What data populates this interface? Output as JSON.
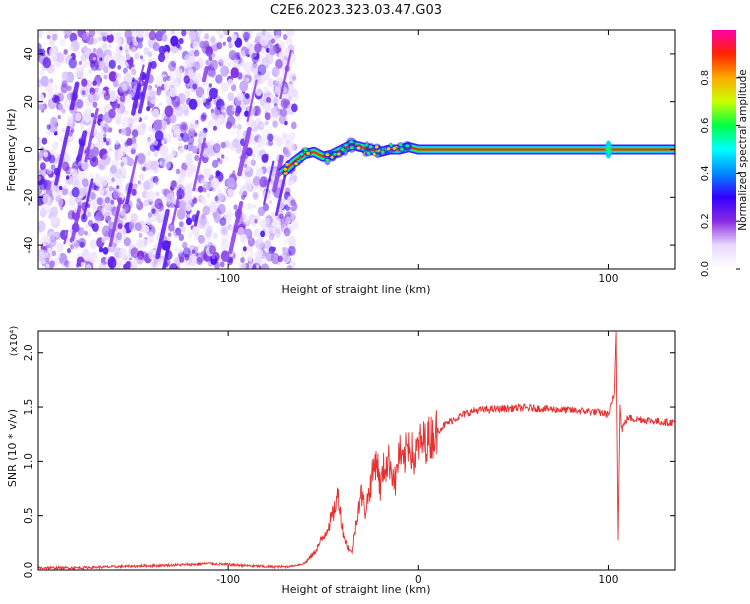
{
  "page": {
    "title": "C2E6.2023.323.03.47.G03"
  },
  "colorbar": {
    "label": "Normalized spectral amplitude",
    "ticks": [
      "0.0",
      "0.2",
      "0.4",
      "0.6",
      "0.8"
    ],
    "tick_values": [
      0.0,
      0.2,
      0.4,
      0.6,
      0.8
    ],
    "range": [
      0,
      1
    ],
    "colors": [
      "#ffffff",
      "#e8d8ff",
      "#8a2be2",
      "#3300ff",
      "#0088ff",
      "#00ffff",
      "#00ff44",
      "#c8ff00",
      "#ffaa00",
      "#ff2200",
      "#ff00aa"
    ]
  },
  "chart_data": [
    {
      "type": "heatmap",
      "title": "C2E6.2023.323.03.47.G03",
      "xlabel": "Height of straight line (km)",
      "ylabel": "Frequency (Hz)",
      "xlim": [
        -200,
        135
      ],
      "ylim": [
        -50,
        50
      ],
      "xticks": [
        -100,
        0,
        100
      ],
      "xtick_labels": [
        "-100",
        "",
        "100"
      ],
      "yticks": [
        -40,
        -20,
        0,
        20,
        40
      ],
      "ytick_labels": [
        "-40",
        "-20",
        "0",
        "20",
        "40"
      ],
      "colorscale_label": "Normalized spectral amplitude",
      "features": [
        {
          "name": "noise",
          "x_range": [
            -200,
            -68
          ],
          "freq_range": [
            -50,
            50
          ],
          "amplitude": 0.05
        },
        {
          "name": "signal-ridge",
          "x": [
            -72,
            -65,
            -60,
            -55,
            -50,
            -45,
            -40,
            -35,
            -30,
            -25,
            -20,
            -15,
            -10,
            -5,
            0,
            10,
            20,
            40,
            60,
            80,
            100,
            120,
            135
          ],
          "freq": [
            -10,
            -5,
            -2,
            -1,
            -3,
            -2,
            0,
            2,
            1,
            0,
            -1,
            0,
            0,
            1,
            0,
            0,
            0,
            0,
            0,
            0,
            0,
            0,
            0
          ],
          "amplitude": 0.9
        }
      ]
    },
    {
      "type": "line",
      "xlabel": "Height of straight line (km)",
      "ylabel": "SNR (10 * v/v)",
      "y_multiplier": "(x10⁴)",
      "xlim": [
        -200,
        135
      ],
      "ylim": [
        0,
        2.2
      ],
      "xticks": [
        -100,
        0,
        100
      ],
      "xtick_labels": [
        "-100",
        "0",
        "100"
      ],
      "yticks": [
        0.0,
        0.5,
        1.0,
        1.5,
        2.0
      ],
      "ytick_labels": [
        "0.0",
        "0.5",
        "1.0",
        "1.5",
        "2.0"
      ],
      "series": [
        {
          "color": "#e83030",
          "x": [
            -200,
            -180,
            -160,
            -140,
            -120,
            -110,
            -100,
            -90,
            -80,
            -70,
            -65,
            -60,
            -55,
            -50,
            -45,
            -42,
            -40,
            -38,
            -35,
            -32,
            -30,
            -28,
            -25,
            -22,
            -20,
            -18,
            -15,
            -12,
            -10,
            -8,
            -5,
            -2,
            0,
            5,
            10,
            15,
            20,
            25,
            30,
            40,
            50,
            60,
            70,
            80,
            90,
            95,
            100,
            103,
            104,
            105,
            106,
            107,
            110,
            115,
            120,
            125,
            130,
            135
          ],
          "y": [
            0.02,
            0.02,
            0.03,
            0.04,
            0.05,
            0.06,
            0.05,
            0.04,
            0.03,
            0.03,
            0.04,
            0.06,
            0.15,
            0.3,
            0.5,
            0.7,
            0.4,
            0.25,
            0.15,
            0.55,
            0.7,
            0.55,
            0.8,
            1.05,
            0.75,
            0.95,
            1.0,
            0.8,
            1.1,
            0.95,
            1.2,
            1.0,
            1.15,
            1.2,
            1.28,
            1.35,
            1.4,
            1.44,
            1.47,
            1.48,
            1.49,
            1.49,
            1.48,
            1.47,
            1.46,
            1.45,
            1.43,
            1.6,
            2.2,
            0.3,
            1.5,
            1.3,
            1.4,
            1.39,
            1.38,
            1.37,
            1.36,
            1.36
          ]
        }
      ]
    }
  ]
}
